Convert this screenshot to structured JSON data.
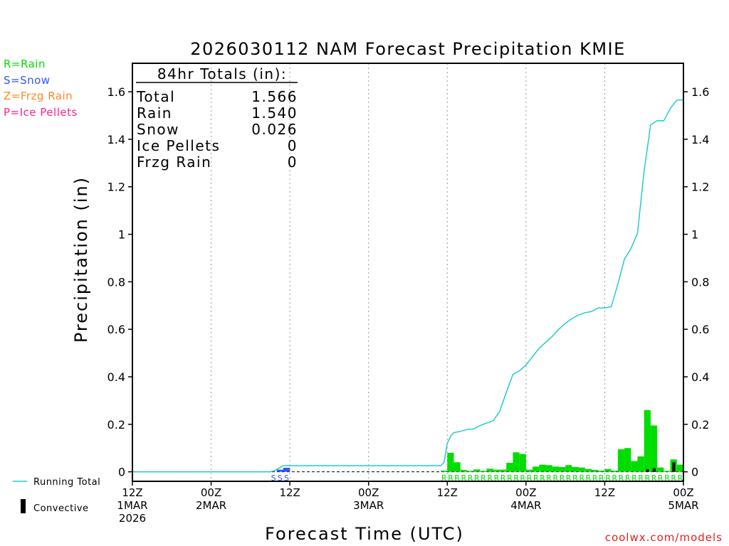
{
  "title": "2026030112 NAM Forecast Precipitation KMIE",
  "ylabel": "Precipitation  (in)",
  "xlabel": "Forecast Time (UTC)",
  "watermark": "coolwx.com/models",
  "type_legend": [
    {
      "label": "R=Rain",
      "color": "#00dd00"
    },
    {
      "label": "S=Snow",
      "color": "#3355ff"
    },
    {
      "label": "Z=Frzg Rain",
      "color": "#ff8822"
    },
    {
      "label": "P=Ice Pellets",
      "color": "#ff2288"
    }
  ],
  "series_legend": {
    "running_total": "Running Total",
    "convective": "Convective"
  },
  "totals": {
    "header": "84hr Totals (in):",
    "rows": [
      {
        "label": "Total",
        "value": "1.566"
      },
      {
        "label": "Rain",
        "value": "1.540"
      },
      {
        "label": "Snow",
        "value": "0.026"
      },
      {
        "label": "Ice Pellets",
        "value": "0"
      },
      {
        "label": "Frzg Rain",
        "value": "0"
      }
    ]
  },
  "chart_data": {
    "type": "bar",
    "title": "2026030112 NAM Forecast Precipitation KMIE",
    "xlabel": "Forecast Time (UTC)",
    "ylabel": "Precipitation (in)",
    "xunit": "forecast hour",
    "xlim": [
      0,
      84
    ],
    "ylim": [
      -0.04,
      1.72
    ],
    "yticks": [
      0,
      0.2,
      0.4,
      0.6,
      0.8,
      1,
      1.2,
      1.4,
      1.6
    ],
    "ytick_labels": [
      "0",
      "0.2",
      "0.4",
      "0.6",
      "0.8",
      "1",
      "1.2",
      "1.4",
      "1.6"
    ],
    "xticks": [
      {
        "hour": 0,
        "lines": [
          "12Z",
          "1MAR",
          "2026"
        ]
      },
      {
        "hour": 12,
        "lines": [
          "00Z",
          "2MAR"
        ]
      },
      {
        "hour": 24,
        "lines": [
          "12Z"
        ]
      },
      {
        "hour": 36,
        "lines": [
          "00Z",
          "3MAR"
        ]
      },
      {
        "hour": 48,
        "lines": [
          "12Z"
        ]
      },
      {
        "hour": 60,
        "lines": [
          "00Z",
          "4MAR"
        ]
      },
      {
        "hour": 72,
        "lines": [
          "12Z"
        ]
      },
      {
        "hour": 84,
        "lines": [
          "00Z",
          "5MAR"
        ]
      }
    ],
    "gridlines_at_hours": [
      12,
      24,
      36,
      48,
      60,
      72
    ],
    "hourly_precip": [
      {
        "hour": 22,
        "value": 0.009,
        "type": "S"
      },
      {
        "hour": 23,
        "value": 0.017,
        "type": "S"
      },
      {
        "hour": 47,
        "value": 0.005,
        "type": "R"
      },
      {
        "hour": 48,
        "value": 0.08,
        "type": "R"
      },
      {
        "hour": 49,
        "value": 0.04,
        "type": "R"
      },
      {
        "hour": 50,
        "value": 0.008,
        "type": "R"
      },
      {
        "hour": 51,
        "value": 0.004,
        "type": "R"
      },
      {
        "hour": 52,
        "value": 0.01,
        "type": "R"
      },
      {
        "hour": 53,
        "value": 0.004,
        "type": "R"
      },
      {
        "hour": 54,
        "value": 0.013,
        "type": "R"
      },
      {
        "hour": 55,
        "value": 0.009,
        "type": "R"
      },
      {
        "hour": 56,
        "value": 0.009,
        "type": "R"
      },
      {
        "hour": 57,
        "value": 0.038,
        "type": "R"
      },
      {
        "hour": 58,
        "value": 0.082,
        "type": "R"
      },
      {
        "hour": 59,
        "value": 0.075,
        "type": "R"
      },
      {
        "hour": 60,
        "value": 0.009,
        "type": "R"
      },
      {
        "hour": 61,
        "value": 0.022,
        "type": "R"
      },
      {
        "hour": 62,
        "value": 0.03,
        "type": "R"
      },
      {
        "hour": 63,
        "value": 0.028,
        "type": "R"
      },
      {
        "hour": 64,
        "value": 0.022,
        "type": "R"
      },
      {
        "hour": 65,
        "value": 0.02,
        "type": "R"
      },
      {
        "hour": 66,
        "value": 0.028,
        "type": "R"
      },
      {
        "hour": 67,
        "value": 0.02,
        "type": "R"
      },
      {
        "hour": 68,
        "value": 0.018,
        "type": "R"
      },
      {
        "hour": 69,
        "value": 0.012,
        "type": "R"
      },
      {
        "hour": 70,
        "value": 0.008,
        "type": "R"
      },
      {
        "hour": 71,
        "value": 0.005,
        "type": "R"
      },
      {
        "hour": 72,
        "value": 0.012,
        "type": "R"
      },
      {
        "hour": 73,
        "value": 0.005,
        "type": "R"
      },
      {
        "hour": 74,
        "value": 0.095,
        "type": "R"
      },
      {
        "hour": 75,
        "value": 0.1,
        "type": "R"
      },
      {
        "hour": 76,
        "value": 0.045,
        "type": "R"
      },
      {
        "hour": 77,
        "value": 0.065,
        "type": "R"
      },
      {
        "hour": 78,
        "value": 0.26,
        "type": "R"
      },
      {
        "hour": 79,
        "value": 0.195,
        "type": "R"
      },
      {
        "hour": 80,
        "value": 0.018,
        "type": "R"
      },
      {
        "hour": 81,
        "value": 0.004,
        "type": "R"
      },
      {
        "hour": 82,
        "value": 0.052,
        "type": "R"
      },
      {
        "hour": 83,
        "value": 0.03,
        "type": "R"
      }
    ],
    "convective": [
      {
        "hour": 78,
        "value": 0.01
      },
      {
        "hour": 79,
        "value": 0.015
      },
      {
        "hour": 82,
        "value": 0.04
      }
    ],
    "running_total": {
      "hours": [
        0,
        21,
        21.5,
        22,
        22.5,
        23,
        24,
        47,
        47.5,
        48,
        48.5,
        49,
        50,
        51,
        52,
        53,
        54,
        55,
        56,
        57,
        58,
        59,
        60,
        61,
        62,
        63,
        64,
        65,
        66,
        67,
        68,
        69,
        70,
        71,
        72,
        73,
        74,
        75,
        76,
        77,
        78,
        79,
        80,
        81,
        82,
        83,
        84
      ],
      "values": [
        0,
        0,
        0.003,
        0.01,
        0.018,
        0.026,
        0.026,
        0.026,
        0.04,
        0.12,
        0.15,
        0.165,
        0.17,
        0.178,
        0.18,
        0.195,
        0.205,
        0.215,
        0.255,
        0.335,
        0.41,
        0.425,
        0.45,
        0.485,
        0.52,
        0.545,
        0.57,
        0.6,
        0.625,
        0.645,
        0.66,
        0.67,
        0.675,
        0.69,
        0.69,
        0.695,
        0.79,
        0.895,
        0.94,
        1.005,
        1.265,
        1.46,
        1.478,
        1.478,
        1.53,
        1.565,
        1.566
      ]
    },
    "type_strip": [
      {
        "start_hour": 21,
        "end_hour": 24,
        "type": "S",
        "color": "#3355ff"
      },
      {
        "start_hour": 47,
        "end_hour": 84,
        "type": "R",
        "color": "#00dd00"
      }
    ]
  }
}
